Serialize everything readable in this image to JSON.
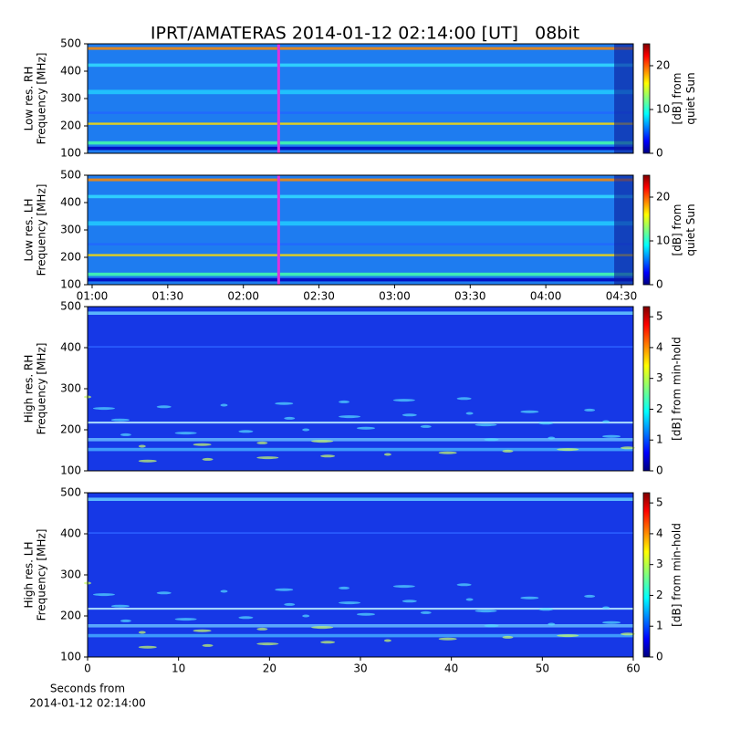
{
  "chart_data": [
    {
      "type": "spectrogram",
      "title": "IPRT/AMATERAS 2014-01-12 02:14:00 [UT]   08bit",
      "ylabel": [
        "Low res. RH",
        "Frequency [MHz]"
      ],
      "ylim": [
        100,
        500
      ],
      "yticks": [
        100,
        200,
        300,
        400,
        500
      ],
      "xlim": [
        58.2,
        274.7
      ],
      "marker": 134,
      "marker_color": "#dd33dd",
      "colorbar_label": [
        "[dB] from",
        "quiet Sun"
      ],
      "clim": [
        0,
        25
      ],
      "cticks": [
        0,
        10,
        20
      ]
    },
    {
      "type": "spectrogram",
      "ylabel": [
        "Low res. LH",
        "Frequency [MHz]"
      ],
      "ylim": [
        100,
        500
      ],
      "yticks": [
        100,
        200,
        300,
        400,
        500
      ],
      "xlim": [
        58.2,
        274.7
      ],
      "marker": 134,
      "marker_color": "#dd33dd",
      "xticks": [
        {
          "value": 60,
          "label": "01:00"
        },
        {
          "value": 90,
          "label": "01:30"
        },
        {
          "value": 120,
          "label": "02:00"
        },
        {
          "value": 150,
          "label": "02:30"
        },
        {
          "value": 180,
          "label": "03:00"
        },
        {
          "value": 210,
          "label": "03:30"
        },
        {
          "value": 240,
          "label": "04:00"
        },
        {
          "value": 270,
          "label": "04:30"
        }
      ],
      "colorbar_label": [
        "[dB] from",
        "quiet Sun"
      ],
      "clim": [
        0,
        25
      ],
      "cticks": [
        0,
        10,
        20
      ]
    },
    {
      "type": "spectrogram",
      "ylabel": [
        "High res. RH",
        "Frequency [MHz]"
      ],
      "ylim": [
        100,
        500
      ],
      "yticks": [
        100,
        200,
        300,
        400,
        500
      ],
      "xlim": [
        0,
        60
      ],
      "colorbar_label": [
        "[dB] from min-hold"
      ],
      "clim": [
        0,
        5.33
      ],
      "cticks": [
        0,
        1,
        2,
        3,
        4,
        5
      ]
    },
    {
      "type": "spectrogram",
      "ylabel": [
        "High res. LH",
        "Frequency [MHz]"
      ],
      "ylim": [
        100,
        500
      ],
      "yticks": [
        100,
        200,
        300,
        400,
        500
      ],
      "xlim": [
        0,
        60
      ],
      "xticks": [
        0,
        10,
        20,
        30,
        40,
        50,
        60
      ],
      "xlabel": [
        "Seconds from",
        "2014-01-12 02:14:00"
      ],
      "colorbar_label": [
        "[dB] from min-hold"
      ],
      "clim": [
        0,
        5.33
      ],
      "cticks": [
        0,
        1,
        2,
        3,
        4,
        5
      ]
    }
  ]
}
